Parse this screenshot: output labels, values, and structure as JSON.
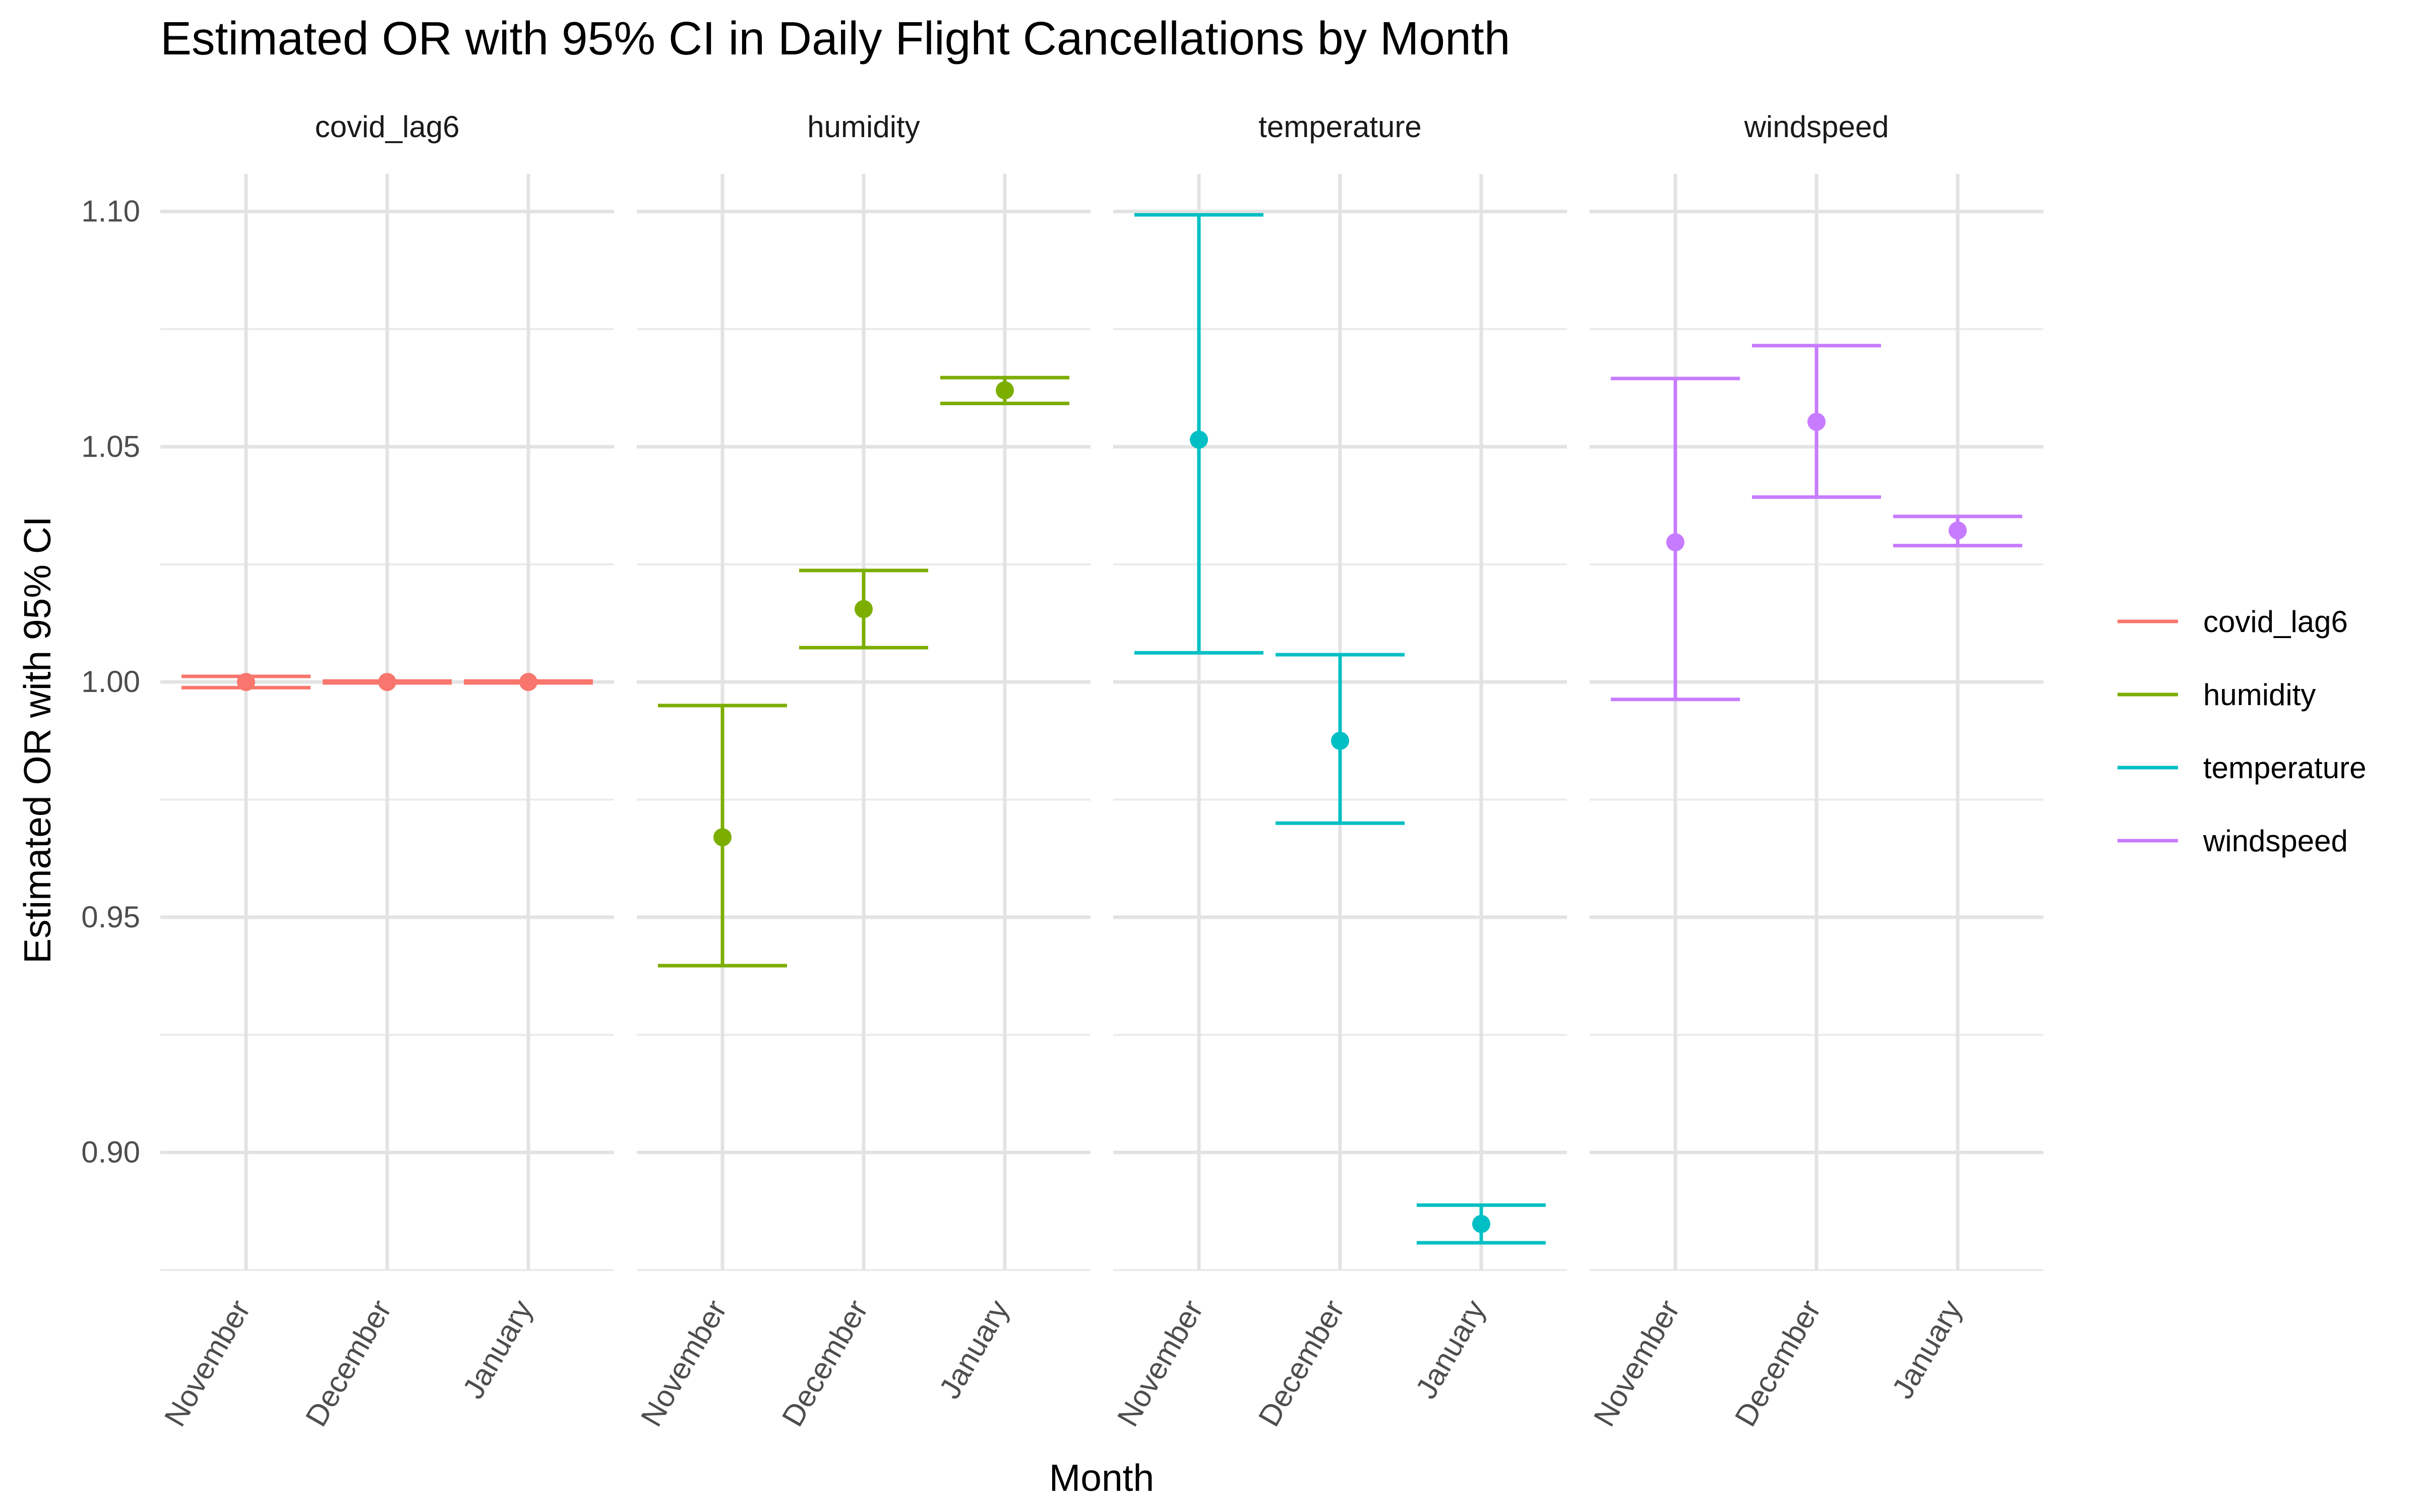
{
  "chart_data": {
    "type": "errorbar",
    "title": "Estimated OR with 95% CI in Daily Flight Cancellations by Month",
    "xlabel": "Month",
    "ylabel": "Estimated OR with 95% CI",
    "categories": [
      "November",
      "December",
      "January"
    ],
    "ylim": [
      0.875,
      1.108
    ],
    "yticks": [
      "0.90",
      "0.95",
      "1.00",
      "1.05",
      "1.10"
    ],
    "grid": true,
    "legend_position": "right",
    "facets": [
      "covid_lag6",
      "humidity",
      "temperature",
      "windspeed"
    ],
    "series": [
      {
        "name": "covid_lag6",
        "color": "#F8766D",
        "estimate": [
          1.0,
          1.0,
          1.0
        ],
        "lower": [
          0.9988,
          0.9998,
          0.9998
        ],
        "upper": [
          1.0012,
          1.0002,
          1.0002
        ]
      },
      {
        "name": "humidity",
        "color": "#7CAE00",
        "estimate": [
          0.967,
          1.0155,
          1.062
        ],
        "lower": [
          0.9397,
          1.0073,
          1.0592
        ],
        "upper": [
          0.995,
          1.0237,
          1.0647
        ]
      },
      {
        "name": "temperature",
        "color": "#00BFC4",
        "estimate": [
          1.0515,
          0.9875,
          0.8848
        ],
        "lower": [
          1.0062,
          0.97,
          0.8808
        ],
        "upper": [
          1.0993,
          1.0058,
          0.8888
        ]
      },
      {
        "name": "windspeed",
        "color": "#C77CFF",
        "estimate": [
          1.0297,
          1.0553,
          1.0322
        ],
        "lower": [
          0.9963,
          1.0393,
          1.029
        ],
        "upper": [
          1.0645,
          1.0715,
          1.0352
        ]
      }
    ]
  }
}
